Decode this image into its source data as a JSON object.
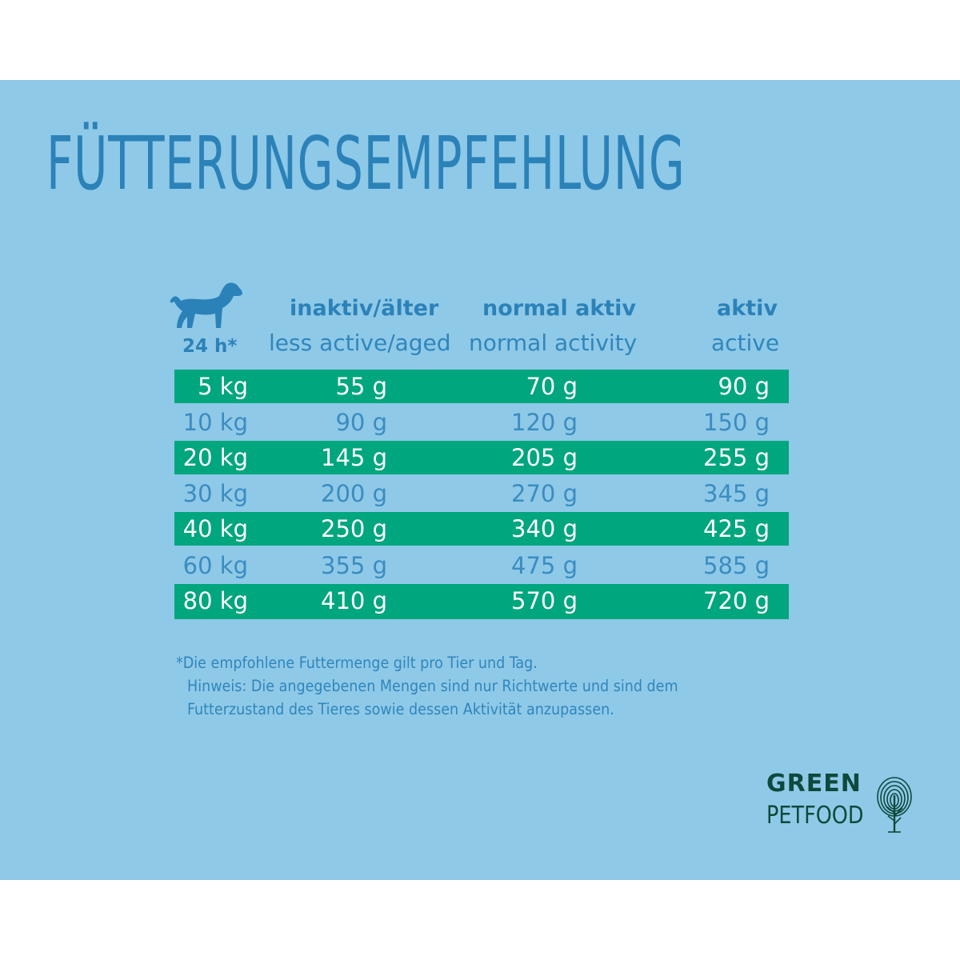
{
  "title": "Fütterungsempfehlung",
  "header": {
    "time_label": "24 h*",
    "columns": [
      {
        "de": "inaktiv/älter",
        "en": "less active/aged"
      },
      {
        "de": "normal aktiv",
        "en": "normal activity"
      },
      {
        "de": "aktiv",
        "en": "active"
      }
    ]
  },
  "rows": [
    {
      "weight": "5 kg",
      "values": [
        "55 g",
        "70 g",
        "90 g"
      ]
    },
    {
      "weight": "10 kg",
      "values": [
        "90 g",
        "120 g",
        "150 g"
      ]
    },
    {
      "weight": "20 kg",
      "values": [
        "145 g",
        "205 g",
        "255 g"
      ]
    },
    {
      "weight": "30 kg",
      "values": [
        "200 g",
        "270 g",
        "345 g"
      ]
    },
    {
      "weight": "40 kg",
      "values": [
        "250 g",
        "340 g",
        "425 g"
      ]
    },
    {
      "weight": "60 kg",
      "values": [
        "355 g",
        "475 g",
        "585 g"
      ]
    },
    {
      "weight": "80 kg",
      "values": [
        "410 g",
        "570 g",
        "720 g"
      ]
    }
  ],
  "notes": [
    "*Die empfohlene Futtermenge gilt pro Tier und Tag.",
    "Hinweis: Die angegebenen Mengen sind nur Richtwerte und sind dem",
    "Futterzustand des Tieres sowie dessen Aktivität anzupassen."
  ],
  "logo": {
    "line1": "GREEN",
    "line2": "PETFOOD"
  },
  "colors": {
    "background": "#8fc9e8",
    "accent_band": "#00a67e",
    "text_blue": "#2b82b8",
    "logo": "#0d4a3c"
  },
  "icons": {
    "dog": "dog-icon",
    "fingerprint": "fingerprint-tree-icon"
  }
}
